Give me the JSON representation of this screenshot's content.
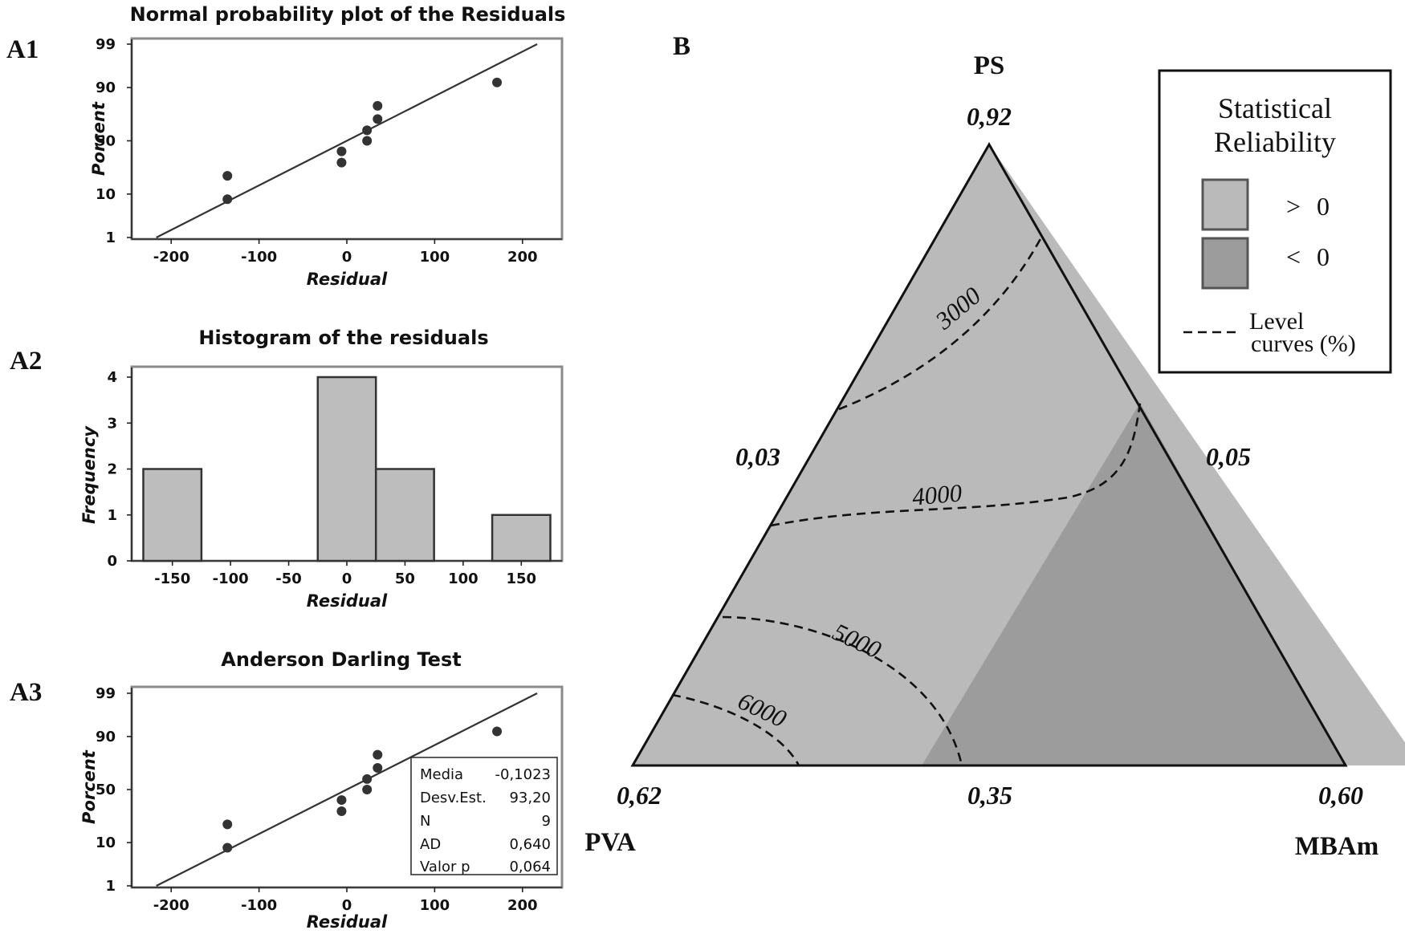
{
  "colors": {
    "bar_fill": "#bdbdbd",
    "region_positive": "#bababa",
    "region_negative": "#9c9c9c",
    "ink": "#111111"
  },
  "panels": {
    "a1": {
      "label": "A1"
    },
    "a2": {
      "label": "A2"
    },
    "a3": {
      "label": "A3"
    },
    "b": {
      "label": "B"
    }
  },
  "chart_data": [
    {
      "id": "A1",
      "type": "scatter",
      "title": "Normal probability plot of the Residuals",
      "xlabel": "Residual",
      "ylabel": "Porcent",
      "xlim": [
        -245,
        245
      ],
      "xticks": [
        -200,
        -100,
        0,
        100,
        200
      ],
      "xtick_labels": [
        "-200",
        "-100",
        "0",
        "100",
        "200"
      ],
      "y_scale": "normal-probability",
      "yticks": [
        1,
        10,
        50,
        90,
        99
      ],
      "ytick_labels": [
        "1",
        "10",
        "50",
        "90",
        "99"
      ],
      "points": [
        {
          "x": -136,
          "y": 8
        },
        {
          "x": -136,
          "y": 20
        },
        {
          "x": -6,
          "y": 30
        },
        {
          "x": -6,
          "y": 40
        },
        {
          "x": 23,
          "y": 50
        },
        {
          "x": 23,
          "y": 60
        },
        {
          "x": 35,
          "y": 70
        },
        {
          "x": 35,
          "y": 80
        },
        {
          "x": 171,
          "y": 92
        }
      ],
      "fit_line": {
        "mean": -0.1023,
        "sd": 93.2
      },
      "grid": false
    },
    {
      "id": "A2",
      "type": "bar",
      "title": "Histogram of the residuals",
      "xlabel": "Residual",
      "ylabel": "Frequency",
      "xlim": [
        -185,
        185
      ],
      "ylim": [
        0,
        4
      ],
      "xticks": [
        -150,
        -100,
        -50,
        0,
        50,
        100,
        150
      ],
      "xtick_labels": [
        "-150",
        "-100",
        "-50",
        "0",
        "50",
        "100",
        "150"
      ],
      "yticks": [
        0,
        1,
        2,
        3,
        4
      ],
      "ytick_labels": [
        "0",
        "1",
        "2",
        "3",
        "4"
      ],
      "bins": [
        {
          "x0": -175,
          "x1": -125,
          "count": 2
        },
        {
          "x0": -25,
          "x1": 25,
          "count": 4
        },
        {
          "x0": 25,
          "x1": 75,
          "count": 2
        },
        {
          "x0": 125,
          "x1": 175,
          "count": 1
        }
      ],
      "grid": false
    },
    {
      "id": "A3",
      "type": "scatter",
      "title": "Anderson Darling Test",
      "xlabel": "Residual",
      "ylabel": "Porcent",
      "xlim": [
        -245,
        245
      ],
      "xticks": [
        -200,
        -100,
        0,
        100,
        200
      ],
      "xtick_labels": [
        "-200",
        "-100",
        "0",
        "100",
        "200"
      ],
      "y_scale": "normal-probability",
      "yticks": [
        1,
        10,
        50,
        90,
        99
      ],
      "ytick_labels": [
        "1",
        "10",
        "50",
        "90",
        "99"
      ],
      "points": [
        {
          "x": -136,
          "y": 8
        },
        {
          "x": -136,
          "y": 20
        },
        {
          "x": -6,
          "y": 30
        },
        {
          "x": -6,
          "y": 40
        },
        {
          "x": 23,
          "y": 50
        },
        {
          "x": 23,
          "y": 60
        },
        {
          "x": 35,
          "y": 70
        },
        {
          "x": 35,
          "y": 80
        },
        {
          "x": 171,
          "y": 92
        }
      ],
      "fit_line": {
        "mean": -0.1023,
        "sd": 93.2
      },
      "stats_box": [
        {
          "label": "Media",
          "value": "-0,1023"
        },
        {
          "label": "Desv.Est.",
          "value": "93,20"
        },
        {
          "label": "N",
          "value": "9"
        },
        {
          "label": "AD",
          "value": "0,640"
        },
        {
          "label": "Valor p",
          "value": "0,064"
        }
      ],
      "grid": false
    },
    {
      "id": "B",
      "type": "ternary",
      "vertices": {
        "top": {
          "name": "PS",
          "value": "0,92"
        },
        "left": {
          "name": "PVA",
          "value": "0,62"
        },
        "right": {
          "name": "MBAm",
          "value": "0,60"
        }
      },
      "edge_values": {
        "left": "0,03",
        "right": "0,05",
        "bottom": "0,35"
      },
      "contour_levels": [
        "3000",
        "4000",
        "5000",
        "6000"
      ],
      "legend": {
        "title_line1": "Statistical",
        "title_line2": "Reliability",
        "items": [
          {
            "symbol": ">",
            "value": "0"
          },
          {
            "symbol": "<",
            "value": "0"
          }
        ],
        "curve_label_line1": "Level",
        "curve_label_line2": "curves (%)",
        "position": "top-right"
      }
    }
  ]
}
